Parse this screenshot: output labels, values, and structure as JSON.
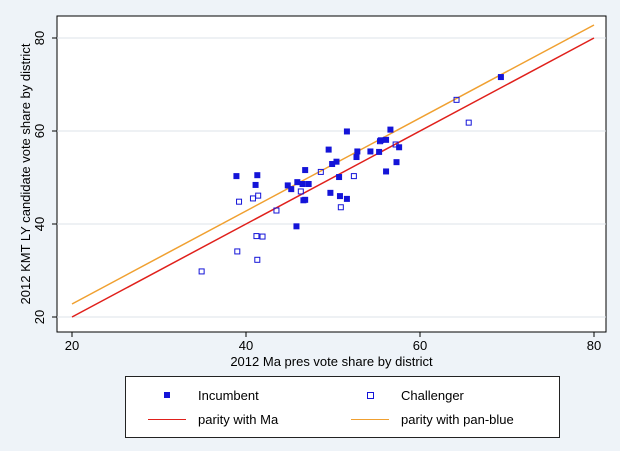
{
  "chart_data": {
    "type": "scatter",
    "title": "",
    "xlabel": "2012 Ma pres vote share by district",
    "ylabel": "2012 KMT LY candidate vote share by district",
    "xlim": [
      20,
      80
    ],
    "ylim": [
      20,
      80
    ],
    "xticks": [
      20,
      40,
      60,
      80
    ],
    "yticks": [
      20,
      40,
      60,
      80
    ],
    "grid": "horizontal",
    "legend_position": "bottom",
    "series": [
      {
        "name": "Incumbent",
        "marker": "filled-square",
        "color": "#1414d8",
        "points": [
          [
            38.9,
            50.3
          ],
          [
            41.1,
            48.4
          ],
          [
            41.3,
            50.5
          ],
          [
            45.2,
            47.5
          ],
          [
            44.8,
            48.3
          ],
          [
            45.9,
            49.0
          ],
          [
            46.5,
            48.6
          ],
          [
            45.8,
            39.5
          ],
          [
            46.6,
            45.1
          ],
          [
            46.8,
            45.2
          ],
          [
            47.2,
            48.6
          ],
          [
            46.8,
            51.6
          ],
          [
            49.5,
            56.0
          ],
          [
            49.7,
            46.7
          ],
          [
            49.9,
            52.9
          ],
          [
            50.4,
            53.4
          ],
          [
            50.7,
            50.1
          ],
          [
            50.8,
            46.0
          ],
          [
            51.6,
            59.9
          ],
          [
            51.6,
            45.4
          ],
          [
            52.7,
            54.4
          ],
          [
            52.8,
            55.6
          ],
          [
            54.3,
            55.6
          ],
          [
            55.3,
            55.5
          ],
          [
            55.5,
            58.0
          ],
          [
            56.1,
            58.1
          ],
          [
            56.1,
            51.3
          ],
          [
            56.6,
            60.3
          ],
          [
            57.3,
            53.3
          ],
          [
            57.6,
            56.5
          ],
          [
            69.3,
            71.6
          ]
        ]
      },
      {
        "name": "Challenger",
        "marker": "hollow-square",
        "color": "#1414d8",
        "points": [
          [
            34.9,
            29.8
          ],
          [
            39.0,
            34.1
          ],
          [
            39.2,
            44.8
          ],
          [
            40.8,
            45.5
          ],
          [
            41.2,
            37.4
          ],
          [
            41.4,
            46.1
          ],
          [
            41.3,
            32.3
          ],
          [
            41.9,
            37.3
          ],
          [
            43.5,
            42.9
          ],
          [
            46.3,
            47.0
          ],
          [
            48.6,
            51.2
          ],
          [
            50.9,
            43.6
          ],
          [
            52.4,
            50.3
          ],
          [
            55.4,
            57.8
          ],
          [
            57.2,
            57.1
          ],
          [
            64.2,
            66.7
          ],
          [
            65.6,
            61.8
          ]
        ]
      },
      {
        "name": "parity with Ma",
        "type": "line",
        "color": "#e0201b",
        "points": [
          [
            20,
            20
          ],
          [
            80,
            80
          ]
        ]
      },
      {
        "name": "parity with pan-blue",
        "type": "line",
        "color": "#f0a030",
        "points": [
          [
            20,
            22.8
          ],
          [
            80,
            82.8
          ]
        ]
      }
    ]
  }
}
